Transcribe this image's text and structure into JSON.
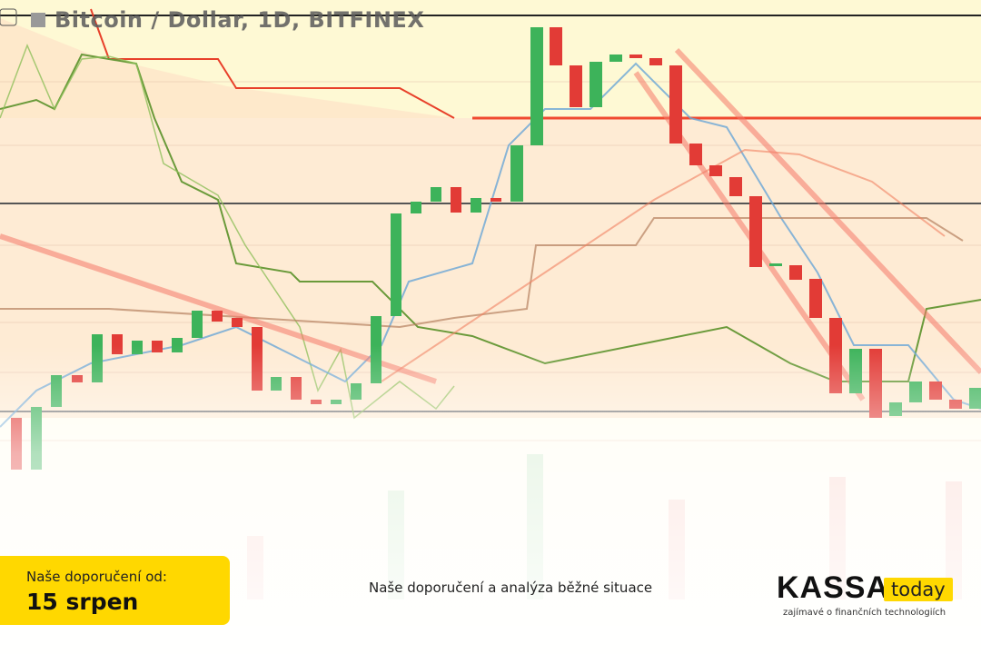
{
  "header": {
    "title": "Bitcoin / Dollar, 1D, BITFINEX"
  },
  "badge": {
    "label": "Naše doporučení od:",
    "date": "15 srpen"
  },
  "caption": "Naše doporučení a analýza běžné situace",
  "logo": {
    "name": "KASSA",
    "tag": "today",
    "slogan": "zajímavé o finančních technologiích"
  }
}
